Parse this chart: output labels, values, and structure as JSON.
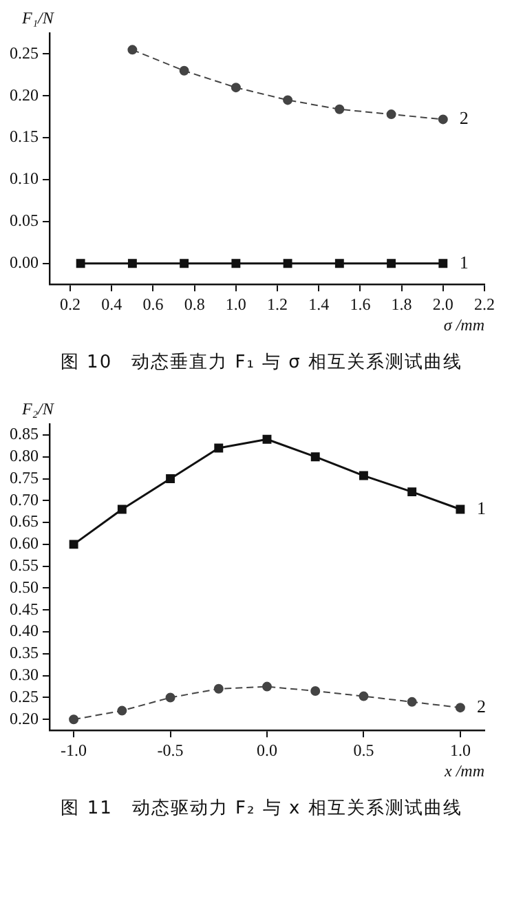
{
  "chart_data": [
    {
      "type": "line",
      "ylabel": "F₁/N",
      "xlabel": "σ /mm",
      "annotations": [
        "图 10　动态垂直力 F₁ 与 σ 相互关系测试曲线"
      ],
      "xlim": [
        0.1,
        2.2
      ],
      "xticks": [
        {
          "value": 0.2,
          "label": "0.2"
        },
        {
          "value": 0.4,
          "label": "0.4"
        },
        {
          "value": 0.6,
          "label": "0.6"
        },
        {
          "value": 0.8,
          "label": "0.8"
        },
        {
          "value": 1.0,
          "label": "1.0"
        },
        {
          "value": 1.2,
          "label": "1.2"
        },
        {
          "value": 1.4,
          "label": "1.4"
        },
        {
          "value": 1.6,
          "label": "1.6"
        },
        {
          "value": 1.8,
          "label": "1.8"
        },
        {
          "value": 2.0,
          "label": "2.0"
        },
        {
          "value": 2.2,
          "label": "2.2"
        }
      ],
      "ylim": [
        -0.025,
        0.275
      ],
      "yticks": [
        {
          "value": 0,
          "label": "0.00"
        },
        {
          "value": 0.05,
          "label": "0.05"
        },
        {
          "value": 0.1,
          "label": "0.10"
        },
        {
          "value": 0.15,
          "label": "0.15"
        },
        {
          "value": 0.2,
          "label": "0.20"
        },
        {
          "value": 0.25,
          "label": "0.25"
        }
      ],
      "grid": false,
      "legend": false,
      "series": [
        {
          "name": "1",
          "color": "#111111",
          "marker": "square",
          "line_style": "solid",
          "x": [
            0.25,
            0.5,
            0.75,
            1.0,
            1.25,
            1.5,
            1.75,
            2.0
          ],
          "values": [
            0,
            0,
            0,
            0,
            0,
            0,
            0,
            0
          ]
        },
        {
          "name": "2",
          "color": "#444444",
          "marker": "circle",
          "line_style": "dashed",
          "x": [
            0.5,
            0.75,
            1.0,
            1.25,
            1.5,
            1.75,
            2.0
          ],
          "values": [
            0.255,
            0.23,
            0.21,
            0.195,
            0.184,
            0.178,
            0.172
          ]
        }
      ]
    },
    {
      "type": "line",
      "ylabel": "F₂/N",
      "xlabel": "x /mm",
      "annotations": [
        "图 11　动态驱动力 F₂ 与 x 相互关系测试曲线"
      ],
      "xlim": [
        -1.125,
        1.125
      ],
      "xticks": [
        {
          "value": -1.0,
          "label": "-1.0"
        },
        {
          "value": -0.5,
          "label": "-0.5"
        },
        {
          "value": 0,
          "label": "0.0"
        },
        {
          "value": 0.5,
          "label": "0.5"
        },
        {
          "value": 1.0,
          "label": "1.0"
        }
      ],
      "ylim": [
        0.175,
        0.875
      ],
      "yticks": [
        {
          "value": 0.2,
          "label": "0.20"
        },
        {
          "value": 0.25,
          "label": "0.25"
        },
        {
          "value": 0.3,
          "label": "0.30"
        },
        {
          "value": 0.35,
          "label": "0.35"
        },
        {
          "value": 0.4,
          "label": "0.40"
        },
        {
          "value": 0.45,
          "label": "0.45"
        },
        {
          "value": 0.5,
          "label": "0.50"
        },
        {
          "value": 0.55,
          "label": "0.55"
        },
        {
          "value": 0.6,
          "label": "0.60"
        },
        {
          "value": 0.65,
          "label": "0.65"
        },
        {
          "value": 0.7,
          "label": "0.70"
        },
        {
          "value": 0.75,
          "label": "0.75"
        },
        {
          "value": 0.8,
          "label": "0.80"
        },
        {
          "value": 0.85,
          "label": "0.85"
        }
      ],
      "grid": false,
      "legend": false,
      "series": [
        {
          "name": "1",
          "color": "#111111",
          "marker": "square",
          "line_style": "solid",
          "x": [
            -1.0,
            -0.75,
            -0.5,
            -0.25,
            0,
            0.25,
            0.5,
            0.75,
            1.0
          ],
          "values": [
            0.6,
            0.68,
            0.75,
            0.82,
            0.84,
            0.8,
            0.757,
            0.72,
            0.68
          ]
        },
        {
          "name": "2",
          "color": "#444444",
          "marker": "circle",
          "line_style": "dashed",
          "x": [
            -1.0,
            -0.75,
            -0.5,
            -0.25,
            0,
            0.25,
            0.5,
            0.75,
            1.0
          ],
          "values": [
            0.2,
            0.22,
            0.25,
            0.27,
            0.275,
            0.265,
            0.253,
            0.24,
            0.227
          ]
        }
      ]
    }
  ]
}
